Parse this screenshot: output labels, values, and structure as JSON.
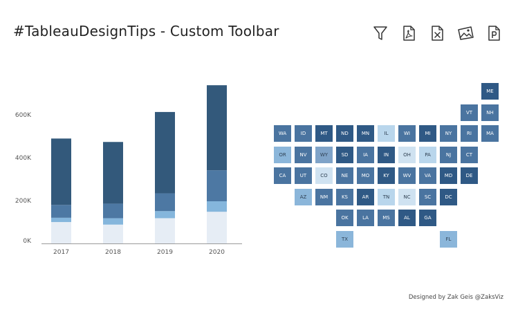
{
  "title": "#TableauDesignTips - Custom Toolbar",
  "toolbar": {
    "items": [
      {
        "name": "filter",
        "icon": "filter-icon"
      },
      {
        "name": "pdf",
        "icon": "pdf-file-icon"
      },
      {
        "name": "excel",
        "icon": "excel-file-icon"
      },
      {
        "name": "image",
        "icon": "image-icon"
      },
      {
        "name": "powerpoint",
        "icon": "powerpoint-file-icon"
      }
    ]
  },
  "chart_data": {
    "type": "bar",
    "stacked": true,
    "categories": [
      "2017",
      "2018",
      "2019",
      "2020"
    ],
    "series": [
      {
        "color": "#e6edf5",
        "values": [
          100000,
          88000,
          118000,
          148000
        ]
      },
      {
        "color": "#85b6dc",
        "values": [
          20000,
          30000,
          33000,
          49000
        ]
      },
      {
        "color": "#4d78a3",
        "values": [
          60000,
          68000,
          83000,
          145000
        ]
      },
      {
        "color": "#33597b",
        "values": [
          310000,
          288000,
          380000,
          397000
        ]
      }
    ],
    "yticks": [
      "0K",
      "200K",
      "400K",
      "600K"
    ],
    "ylim": [
      0,
      730000
    ],
    "grid": false
  },
  "map_data": {
    "type": "tile-map",
    "tiles": [
      {
        "state": "ME",
        "col": 10,
        "row": 0,
        "color": "#2f5985"
      },
      {
        "state": "VT",
        "col": 9,
        "row": 1,
        "color": "#4a74a0"
      },
      {
        "state": "NH",
        "col": 10,
        "row": 1,
        "color": "#4a74a0"
      },
      {
        "state": "WA",
        "col": 0,
        "row": 2,
        "color": "#4a74a0"
      },
      {
        "state": "ID",
        "col": 1,
        "row": 2,
        "color": "#4a74a0"
      },
      {
        "state": "MT",
        "col": 2,
        "row": 2,
        "color": "#2f5985"
      },
      {
        "state": "ND",
        "col": 3,
        "row": 2,
        "color": "#2f5985"
      },
      {
        "state": "MN",
        "col": 4,
        "row": 2,
        "color": "#2f5985"
      },
      {
        "state": "IL",
        "col": 5,
        "row": 2,
        "color": "#b9d6ec"
      },
      {
        "state": "WI",
        "col": 6,
        "row": 2,
        "color": "#4a74a0"
      },
      {
        "state": "MI",
        "col": 7,
        "row": 2,
        "color": "#2f5985"
      },
      {
        "state": "NY",
        "col": 8,
        "row": 2,
        "color": "#4a74a0"
      },
      {
        "state": "RI",
        "col": 9,
        "row": 2,
        "color": "#4a74a0"
      },
      {
        "state": "MA",
        "col": 10,
        "row": 2,
        "color": "#4a74a0"
      },
      {
        "state": "OR",
        "col": 0,
        "row": 3,
        "color": "#8bb6da"
      },
      {
        "state": "NV",
        "col": 1,
        "row": 3,
        "color": "#4a74a0"
      },
      {
        "state": "WY",
        "col": 2,
        "row": 3,
        "color": "#7fa3c8"
      },
      {
        "state": "SD",
        "col": 3,
        "row": 3,
        "color": "#2f5985"
      },
      {
        "state": "IA",
        "col": 4,
        "row": 3,
        "color": "#4a74a0"
      },
      {
        "state": "IN",
        "col": 5,
        "row": 3,
        "color": "#2f5985"
      },
      {
        "state": "OH",
        "col": 6,
        "row": 3,
        "color": "#cfe2f1"
      },
      {
        "state": "PA",
        "col": 7,
        "row": 3,
        "color": "#b9d6ec"
      },
      {
        "state": "NJ",
        "col": 8,
        "row": 3,
        "color": "#4a74a0"
      },
      {
        "state": "CT",
        "col": 9,
        "row": 3,
        "color": "#4a74a0"
      },
      {
        "state": "CA",
        "col": 0,
        "row": 4,
        "color": "#4a74a0"
      },
      {
        "state": "UT",
        "col": 1,
        "row": 4,
        "color": "#4a74a0"
      },
      {
        "state": "CO",
        "col": 2,
        "row": 4,
        "color": "#cfe2f1"
      },
      {
        "state": "NE",
        "col": 3,
        "row": 4,
        "color": "#4a74a0"
      },
      {
        "state": "MO",
        "col": 4,
        "row": 4,
        "color": "#4a74a0"
      },
      {
        "state": "KY",
        "col": 5,
        "row": 4,
        "color": "#2f5985"
      },
      {
        "state": "WV",
        "col": 6,
        "row": 4,
        "color": "#4a74a0"
      },
      {
        "state": "VA",
        "col": 7,
        "row": 4,
        "color": "#4a74a0"
      },
      {
        "state": "MD",
        "col": 8,
        "row": 4,
        "color": "#2f5985"
      },
      {
        "state": "DE",
        "col": 9,
        "row": 4,
        "color": "#2f5985"
      },
      {
        "state": "AZ",
        "col": 1,
        "row": 5,
        "color": "#8bb6da"
      },
      {
        "state": "NM",
        "col": 2,
        "row": 5,
        "color": "#4a74a0"
      },
      {
        "state": "KS",
        "col": 3,
        "row": 5,
        "color": "#4a74a0"
      },
      {
        "state": "AR",
        "col": 4,
        "row": 5,
        "color": "#2f5985"
      },
      {
        "state": "TN",
        "col": 5,
        "row": 5,
        "color": "#b9d6ec"
      },
      {
        "state": "NC",
        "col": 6,
        "row": 5,
        "color": "#cfe2f1"
      },
      {
        "state": "SC",
        "col": 7,
        "row": 5,
        "color": "#4a74a0"
      },
      {
        "state": "DC",
        "col": 8,
        "row": 5,
        "color": "#2f5985"
      },
      {
        "state": "OK",
        "col": 3,
        "row": 6,
        "color": "#4a74a0"
      },
      {
        "state": "LA",
        "col": 4,
        "row": 6,
        "color": "#4a74a0"
      },
      {
        "state": "MS",
        "col": 5,
        "row": 6,
        "color": "#4a74a0"
      },
      {
        "state": "AL",
        "col": 6,
        "row": 6,
        "color": "#2f5985"
      },
      {
        "state": "GA",
        "col": 7,
        "row": 6,
        "color": "#2f5985"
      },
      {
        "state": "TX",
        "col": 3,
        "row": 7,
        "color": "#8bb6da"
      },
      {
        "state": "FL",
        "col": 8,
        "row": 7,
        "color": "#8bb6da"
      }
    ]
  },
  "footer": "Designed by Zak Geis @ZaksViz"
}
